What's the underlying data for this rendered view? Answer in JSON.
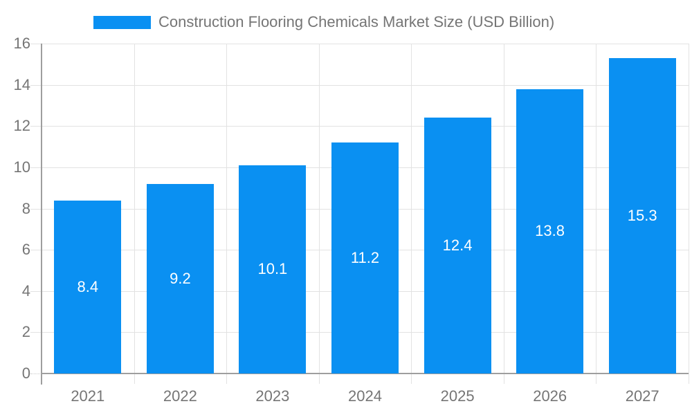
{
  "chart_data": {
    "type": "bar",
    "title": "Construction Flooring Chemicals Market Size (USD Billion)",
    "categories": [
      "2021",
      "2022",
      "2023",
      "2024",
      "2025",
      "2026",
      "2027"
    ],
    "values": [
      8.4,
      9.2,
      10.1,
      11.2,
      12.4,
      13.8,
      15.3
    ],
    "value_labels": [
      "8.4",
      "9.2",
      "10.1",
      "11.2",
      "12.4",
      "13.8",
      "15.3"
    ],
    "xlabel": "",
    "ylabel": "",
    "ylim": [
      0,
      16
    ],
    "yticks": [
      0,
      2,
      4,
      6,
      8,
      10,
      12,
      14,
      16
    ],
    "grid": true,
    "legend_position": "top",
    "colors": {
      "bar": "#0a90f2",
      "axis_text": "#757575",
      "value_label": "#ffffff",
      "gridline": "#e2e2e2",
      "axis_line": "#9e9e9e",
      "background": "#ffffff"
    }
  }
}
